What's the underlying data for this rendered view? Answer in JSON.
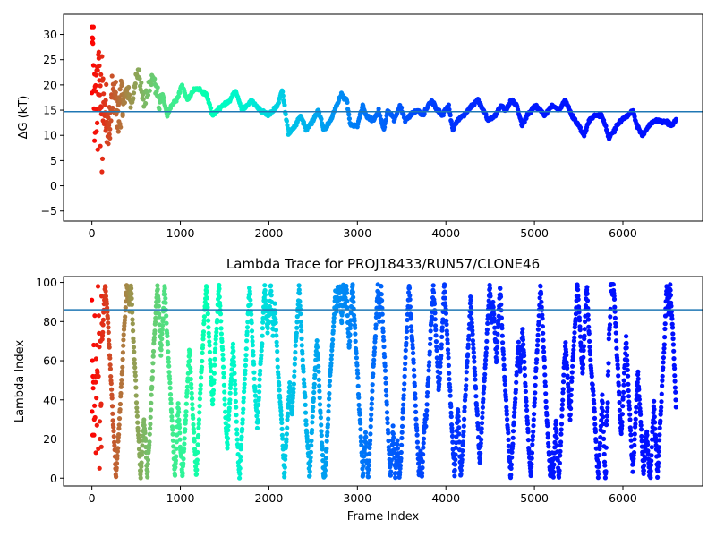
{
  "chart_data": [
    {
      "type": "scatter",
      "title": "",
      "xlabel": "",
      "ylabel": "ΔG (kT)",
      "xlim": [
        -320,
        6900
      ],
      "ylim": [
        -7,
        34
      ],
      "xticks": [
        0,
        1000,
        2000,
        3000,
        4000,
        5000,
        6000
      ],
      "xtick_labels": [
        "0",
        "1000",
        "2000",
        "3000",
        "4000",
        "5000",
        "6000"
      ],
      "yticks": [
        -5,
        0,
        5,
        10,
        15,
        20,
        25,
        30
      ],
      "ytick_labels": [
        "−5",
        "0",
        "5",
        "10",
        "15",
        "20",
        "25",
        "30"
      ],
      "hline": 14.7,
      "hline_color": "#1f77b4",
      "colormap": "rainbow",
      "x_range": [
        0,
        6600
      ],
      "series_shape": [
        [
          0,
          30
        ],
        [
          40,
          14
        ],
        [
          80,
          19
        ],
        [
          120,
          12
        ],
        [
          160,
          17
        ],
        [
          200,
          11
        ],
        [
          250,
          20
        ],
        [
          300,
          14
        ],
        [
          350,
          17
        ],
        [
          400,
          19
        ],
        [
          450,
          16
        ],
        [
          520,
          23
        ],
        [
          580,
          17
        ],
        [
          640,
          19
        ],
        [
          700,
          21
        ],
        [
          760,
          16
        ],
        [
          800,
          18
        ],
        [
          850,
          14
        ],
        [
          900,
          16
        ],
        [
          960,
          17
        ],
        [
          1020,
          20
        ],
        [
          1080,
          17
        ],
        [
          1150,
          19
        ],
        [
          1230,
          19
        ],
        [
          1300,
          18
        ],
        [
          1360,
          14
        ],
        [
          1420,
          15
        ],
        [
          1480,
          16
        ],
        [
          1560,
          17
        ],
        [
          1620,
          19
        ],
        [
          1700,
          15
        ],
        [
          1800,
          17
        ],
        [
          1900,
          15
        ],
        [
          2000,
          14
        ],
        [
          2100,
          16
        ],
        [
          2150,
          19
        ],
        [
          2220,
          10.5
        ],
        [
          2300,
          12
        ],
        [
          2360,
          14
        ],
        [
          2420,
          11
        ],
        [
          2500,
          13
        ],
        [
          2560,
          15
        ],
        [
          2620,
          11
        ],
        [
          2700,
          13
        ],
        [
          2740,
          15
        ],
        [
          2820,
          18
        ],
        [
          2880,
          17
        ],
        [
          2920,
          12
        ],
        [
          3000,
          12
        ],
        [
          3060,
          16
        ],
        [
          3100,
          14
        ],
        [
          3180,
          13
        ],
        [
          3240,
          15
        ],
        [
          3300,
          11
        ],
        [
          3340,
          15
        ],
        [
          3420,
          13
        ],
        [
          3480,
          16
        ],
        [
          3540,
          13
        ],
        [
          3600,
          14
        ],
        [
          3680,
          15
        ],
        [
          3740,
          14
        ],
        [
          3800,
          16
        ],
        [
          3840,
          17
        ],
        [
          3900,
          15
        ],
        [
          3960,
          14
        ],
        [
          4030,
          16
        ],
        [
          4080,
          11
        ],
        [
          4130,
          13
        ],
        [
          4200,
          14
        ],
        [
          4300,
          16
        ],
        [
          4360,
          17
        ],
        [
          4420,
          15
        ],
        [
          4480,
          13
        ],
        [
          4560,
          14
        ],
        [
          4620,
          16
        ],
        [
          4680,
          15
        ],
        [
          4740,
          17
        ],
        [
          4800,
          16
        ],
        [
          4860,
          12
        ],
        [
          4920,
          14
        ],
        [
          5000,
          16
        ],
        [
          5060,
          15
        ],
        [
          5120,
          14
        ],
        [
          5200,
          16
        ],
        [
          5280,
          15
        ],
        [
          5350,
          17
        ],
        [
          5420,
          14
        ],
        [
          5500,
          12
        ],
        [
          5560,
          10
        ],
        [
          5620,
          13
        ],
        [
          5680,
          14
        ],
        [
          5760,
          14
        ],
        [
          5800,
          12
        ],
        [
          5840,
          9.5
        ],
        [
          5900,
          11
        ],
        [
          5980,
          13
        ],
        [
          6060,
          14
        ],
        [
          6110,
          15
        ],
        [
          6160,
          12
        ],
        [
          6220,
          10
        ],
        [
          6300,
          12
        ],
        [
          6380,
          13
        ],
        [
          6500,
          12.5
        ],
        [
          6550,
          12
        ],
        [
          6600,
          13
        ]
      ]
    },
    {
      "type": "scatter",
      "title": "Lambda Trace for PROJ18433/RUN57/CLONE46",
      "xlabel": "Frame Index",
      "ylabel": "Lambda Index",
      "xlim": [
        -320,
        6900
      ],
      "ylim": [
        -4,
        103
      ],
      "xticks": [
        0,
        1000,
        2000,
        3000,
        4000,
        5000,
        6000
      ],
      "xtick_labels": [
        "0",
        "1000",
        "2000",
        "3000",
        "4000",
        "5000",
        "6000"
      ],
      "yticks": [
        0,
        20,
        40,
        60,
        80,
        100
      ],
      "ytick_labels": [
        "0",
        "20",
        "40",
        "60",
        "80",
        "100"
      ],
      "hline": 86,
      "hline_color": "#1f77b4",
      "colormap": "rainbow",
      "x_range": [
        0,
        6600
      ],
      "lambda_range": [
        0,
        99
      ]
    }
  ]
}
